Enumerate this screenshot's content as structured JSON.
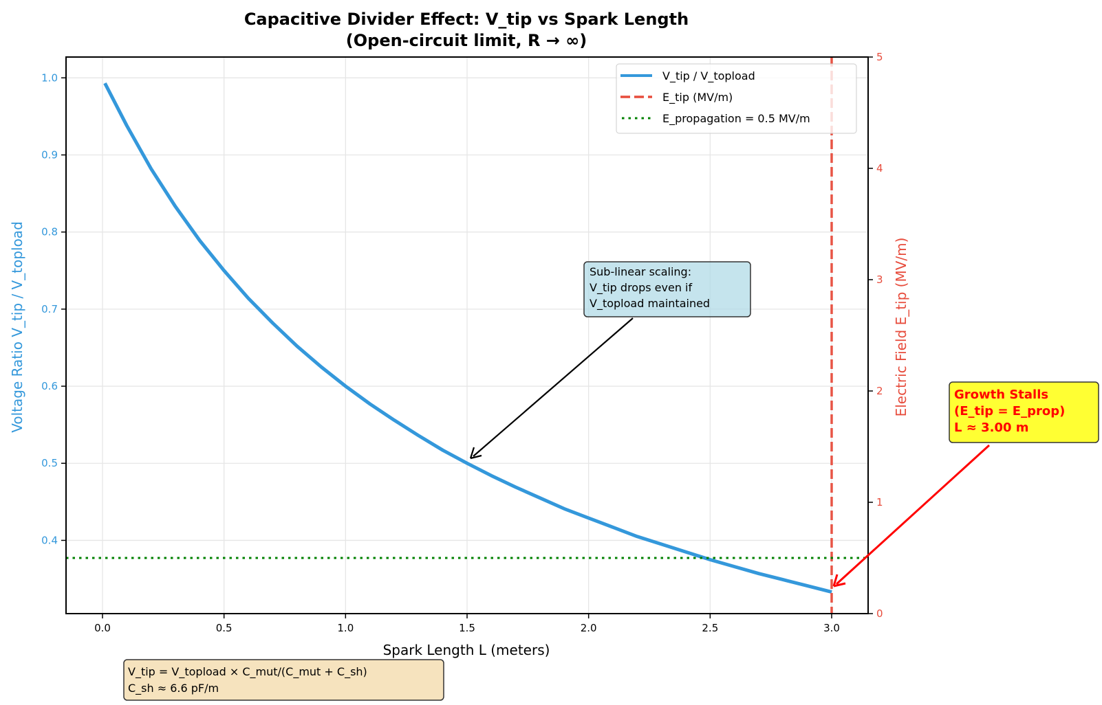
{
  "chart_data": {
    "type": "line",
    "title": "Capacitive Divider Effect: V_tip vs Spark Length",
    "subtitle": "(Open-circuit limit, R → ∞)",
    "xlabel": "Spark Length L (meters)",
    "ylabel_left": "Voltage Ratio V_tip / V_topload",
    "ylabel_right": "Electric Field E_tip (MV/m)",
    "xlim": [
      -0.15,
      3.15
    ],
    "ylim_left": [
      0.305,
      1.027
    ],
    "ylim_right": [
      0,
      5
    ],
    "x_ticks": [
      "0.0",
      "0.5",
      "1.0",
      "1.5",
      "2.0",
      "2.5",
      "3.0"
    ],
    "x_tick_values": [
      0,
      0.5,
      1.0,
      1.5,
      2.0,
      2.5,
      3.0
    ],
    "y_left_ticks": [
      "0.4",
      "0.5",
      "0.6",
      "0.7",
      "0.8",
      "0.9",
      "1.0"
    ],
    "y_left_tick_values": [
      0.4,
      0.5,
      0.6,
      0.7,
      0.8,
      0.9,
      1.0
    ],
    "y_right_ticks": [
      "0",
      "1",
      "2",
      "3",
      "4",
      "5"
    ],
    "y_right_tick_values": [
      0,
      1,
      2,
      3,
      4,
      5
    ],
    "grid": true,
    "legend_position": "top-right",
    "series": [
      {
        "name": "V_tip / V_topload",
        "axis": "left",
        "style": "solid",
        "color": "#3498db",
        "x": [
          0.01,
          0.1,
          0.2,
          0.3,
          0.4,
          0.5,
          0.6,
          0.7,
          0.8,
          0.9,
          1.0,
          1.1,
          1.2,
          1.3,
          1.4,
          1.5,
          1.6,
          1.7,
          1.8,
          1.9,
          2.0,
          2.1,
          2.2,
          2.3,
          2.4,
          2.5,
          2.6,
          2.7,
          2.8,
          2.9,
          3.0
        ],
        "y": [
          0.993,
          0.938,
          0.882,
          0.833,
          0.789,
          0.75,
          0.714,
          0.682,
          0.652,
          0.625,
          0.6,
          0.577,
          0.556,
          0.536,
          0.517,
          0.5,
          0.484,
          0.469,
          0.455,
          0.441,
          0.429,
          0.417,
          0.405,
          0.395,
          0.385,
          0.375,
          0.366,
          0.357,
          0.349,
          0.341,
          0.333
        ]
      },
      {
        "name": "E_tip (MV/m)",
        "axis": "right",
        "style": "dashed",
        "color": "#e74c3c",
        "type": "vline",
        "x": 3.0
      },
      {
        "name": "E_propagation = 0.5 MV/m",
        "axis": "right",
        "style": "dotted",
        "color": "#008000",
        "type": "hline",
        "y": 0.5
      }
    ],
    "annotations": [
      {
        "name": "sublinear-note",
        "lines": [
          "Sub-linear scaling:",
          "V_tip drops even if",
          "V_topload maintained"
        ],
        "arrow_to": {
          "x": 1.5,
          "y": 0.5
        },
        "box_color": "#add8e6"
      },
      {
        "name": "growth-stalls",
        "lines": [
          "Growth Stalls",
          "(E_tip = E_prop)",
          "L ≈ 3.00 m"
        ],
        "arrow_to": {
          "x": 3.0,
          "y": 0.333
        },
        "box_color": "#ffff00",
        "text_color": "#ff0000"
      },
      {
        "name": "formula-box",
        "lines": [
          "V_tip = V_topload × C_mut/(C_mut + C_sh)",
          "C_sh ≈ 6.6 pF/m"
        ],
        "box_color": "#f5deb3"
      }
    ]
  },
  "colors": {
    "left_axis": "#3498db",
    "right_axis": "#e74c3c",
    "propagation": "#008000",
    "stall": "#ff0000"
  }
}
